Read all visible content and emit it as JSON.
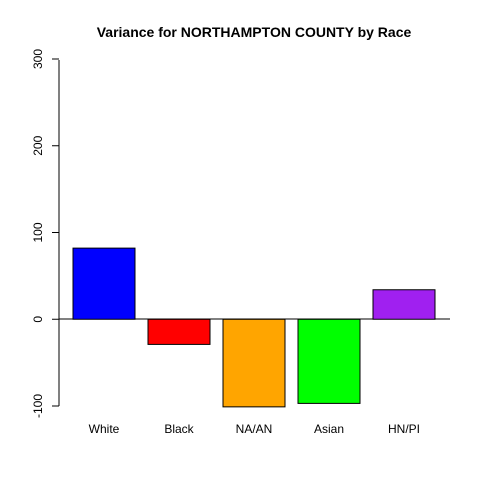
{
  "chart_data": {
    "type": "bar",
    "title": "Variance for NORTHAMPTON COUNTY by Race",
    "xlabel": "",
    "ylabel": "",
    "categories": [
      "White",
      "Black",
      "NA/AN",
      "Asian",
      "HN/PI"
    ],
    "values": [
      82,
      -29,
      -101,
      -97,
      34
    ],
    "colors": [
      "#0000ff",
      "#ff0000",
      "#ffa500",
      "#00ff00",
      "#a020f0"
    ],
    "ylim": [
      -100,
      300
    ],
    "yticks": [
      -100,
      0,
      100,
      200,
      300
    ],
    "grid": false,
    "legend": "none"
  }
}
